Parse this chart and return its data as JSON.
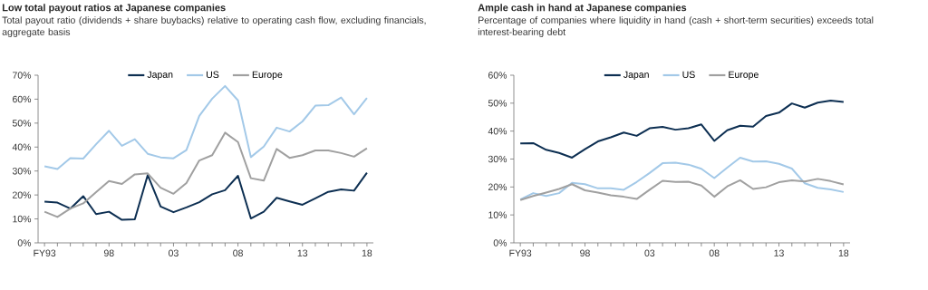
{
  "chart_data": [
    {
      "type": "line",
      "title": "Low total payout ratios at Japanese companies",
      "subtitle": "Total payout ratio (dividends + share buybacks) relative to operating cash flow, excluding financials, aggregate basis",
      "x": [
        1993,
        1994,
        1995,
        1996,
        1997,
        1998,
        1999,
        2000,
        2001,
        2002,
        2003,
        2004,
        2005,
        2006,
        2007,
        2008,
        2009,
        2010,
        2011,
        2012,
        2013,
        2014,
        2015,
        2016,
        2017,
        2018
      ],
      "series": [
        {
          "name": "Japan",
          "color": "#0d2f52",
          "values": [
            17.2,
            16.8,
            14.3,
            19.5,
            12,
            13,
            9.6,
            9.8,
            28.3,
            15.2,
            12.8,
            14.8,
            17,
            20.3,
            22,
            28,
            10.2,
            13,
            18.8,
            17.3,
            15.9,
            18.6,
            21.3,
            22.3,
            21.8,
            29.3
          ]
        },
        {
          "name": "US",
          "color": "#a3c9e8",
          "values": [
            32,
            30.8,
            35.4,
            35.2,
            41.2,
            46.8,
            40.5,
            43.3,
            37.2,
            35.7,
            35.3,
            38.7,
            53,
            60.2,
            65.5,
            59.5,
            35.8,
            40.2,
            48.1,
            46.5,
            50.7,
            57.3,
            57.5,
            60.7,
            53.7,
            60.5
          ]
        },
        {
          "name": "Europe",
          "color": "#a0a0a0",
          "values": [
            13,
            10.8,
            14.3,
            16.5,
            21.2,
            25.8,
            24.6,
            28.6,
            29,
            23,
            20.5,
            25,
            34.4,
            36.6,
            46,
            42.1,
            27,
            26,
            39.2,
            35.5,
            36.6,
            38.6,
            38.6,
            37.5,
            36,
            39.5
          ]
        }
      ],
      "xlim": [
        1992.5,
        2018.5
      ],
      "xticks": [
        {
          "value": 1993,
          "label": "FY93"
        },
        {
          "value": 1994,
          "label": null
        },
        {
          "value": 1995,
          "label": null
        },
        {
          "value": 1996,
          "label": null
        },
        {
          "value": 1997,
          "label": null
        },
        {
          "value": 1998,
          "label": "98"
        },
        {
          "value": 1999,
          "label": null
        },
        {
          "value": 2000,
          "label": null
        },
        {
          "value": 2001,
          "label": null
        },
        {
          "value": 2002,
          "label": null
        },
        {
          "value": 2003,
          "label": "03"
        },
        {
          "value": 2004,
          "label": null
        },
        {
          "value": 2005,
          "label": null
        },
        {
          "value": 2006,
          "label": null
        },
        {
          "value": 2007,
          "label": null
        },
        {
          "value": 2008,
          "label": "08"
        },
        {
          "value": 2009,
          "label": null
        },
        {
          "value": 2010,
          "label": null
        },
        {
          "value": 2011,
          "label": null
        },
        {
          "value": 2012,
          "label": null
        },
        {
          "value": 2013,
          "label": "13"
        },
        {
          "value": 2014,
          "label": null
        },
        {
          "value": 2015,
          "label": null
        },
        {
          "value": 2016,
          "label": null
        },
        {
          "value": 2017,
          "label": null
        },
        {
          "value": 2018,
          "label": "18"
        }
      ],
      "ylim": [
        0,
        70
      ],
      "yticks": [
        {
          "value": 0,
          "label": "0%"
        },
        {
          "value": 10,
          "label": "10%"
        },
        {
          "value": 20,
          "label": "20%"
        },
        {
          "value": 30,
          "label": "30%"
        },
        {
          "value": 40,
          "label": "40%"
        },
        {
          "value": 50,
          "label": "50%"
        },
        {
          "value": 60,
          "label": "60%"
        },
        {
          "value": 70,
          "label": "70%"
        }
      ],
      "grid": false,
      "legend": "top"
    },
    {
      "type": "line",
      "title": "Ample cash in hand at Japanese companies",
      "subtitle": "Percentage of companies where liquidity in hand (cash + short-term securities) exceeds total interest-bearing debt",
      "x": [
        1993,
        1994,
        1995,
        1996,
        1997,
        1998,
        1999,
        2000,
        2001,
        2002,
        2003,
        2004,
        2005,
        2006,
        2007,
        2008,
        2009,
        2010,
        2011,
        2012,
        2013,
        2014,
        2015,
        2016,
        2017,
        2018
      ],
      "series": [
        {
          "name": "Japan",
          "color": "#0d2f52",
          "values": [
            35.6,
            35.7,
            33.3,
            32.2,
            30.5,
            33.5,
            36.3,
            37.8,
            39.5,
            38.3,
            41,
            41.5,
            40.5,
            41,
            42.4,
            36.5,
            40.3,
            41.9,
            41.6,
            45.4,
            46.6,
            49.9,
            48.4,
            50.2,
            50.9,
            50.4
          ]
        },
        {
          "name": "US",
          "color": "#a3c9e8",
          "values": [
            15.5,
            17.8,
            16.8,
            17.8,
            21.5,
            21,
            19.5,
            19.5,
            19,
            21.8,
            25,
            28.5,
            28.7,
            28,
            26.5,
            23.2,
            26.9,
            30.5,
            29.1,
            29.2,
            28.3,
            26.6,
            21.3,
            19.7,
            19.1,
            18.2
          ]
        },
        {
          "name": "Europe",
          "color": "#a0a0a0",
          "values": [
            15.3,
            16.8,
            18,
            19.3,
            21,
            18.8,
            18,
            17,
            16.5,
            15.7,
            19,
            22.2,
            21.8,
            21.9,
            20.5,
            16.5,
            20.2,
            22.4,
            19.3,
            19.9,
            21.7,
            22.4,
            22,
            22.9,
            22.1,
            20.9
          ]
        }
      ],
      "xlim": [
        1992.5,
        2018.5
      ],
      "xticks": [
        {
          "value": 1993,
          "label": "FY93"
        },
        {
          "value": 1994,
          "label": null
        },
        {
          "value": 1995,
          "label": null
        },
        {
          "value": 1996,
          "label": null
        },
        {
          "value": 1997,
          "label": null
        },
        {
          "value": 1998,
          "label": "98"
        },
        {
          "value": 1999,
          "label": null
        },
        {
          "value": 2000,
          "label": null
        },
        {
          "value": 2001,
          "label": null
        },
        {
          "value": 2002,
          "label": null
        },
        {
          "value": 2003,
          "label": "03"
        },
        {
          "value": 2004,
          "label": null
        },
        {
          "value": 2005,
          "label": null
        },
        {
          "value": 2006,
          "label": null
        },
        {
          "value": 2007,
          "label": null
        },
        {
          "value": 2008,
          "label": "08"
        },
        {
          "value": 2009,
          "label": null
        },
        {
          "value": 2010,
          "label": null
        },
        {
          "value": 2011,
          "label": null
        },
        {
          "value": 2012,
          "label": null
        },
        {
          "value": 2013,
          "label": "13"
        },
        {
          "value": 2014,
          "label": null
        },
        {
          "value": 2015,
          "label": null
        },
        {
          "value": 2016,
          "label": null
        },
        {
          "value": 2017,
          "label": null
        },
        {
          "value": 2018,
          "label": "18"
        }
      ],
      "ylim": [
        0,
        60
      ],
      "yticks": [
        {
          "value": 0,
          "label": "0%"
        },
        {
          "value": 10,
          "label": "10%"
        },
        {
          "value": 20,
          "label": "20%"
        },
        {
          "value": 30,
          "label": "30%"
        },
        {
          "value": 40,
          "label": "40%"
        },
        {
          "value": 50,
          "label": "50%"
        },
        {
          "value": 60,
          "label": "60%"
        }
      ],
      "grid": false,
      "legend": "top"
    }
  ]
}
